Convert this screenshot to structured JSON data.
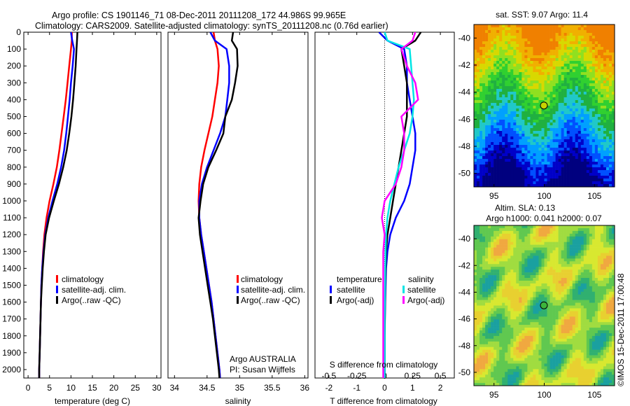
{
  "header": {
    "line1": "Argo profile: CS 1901146_71 08-Dec-2011 20111208_172 44.986S 99.965E",
    "line2": "Climatology: CARS2009. Satellite-adjusted climatology: synTS_20111208.nc (0.76d earlier)"
  },
  "side_label": "©IMOS 15-Dec-2011 17:00:48",
  "colors": {
    "climatology": "#ff0000",
    "satellite": "#0000ff",
    "argo": "#000000",
    "sal_satellite": "#00e5e5",
    "sal_argo": "#ff00ff"
  },
  "chart_data": [
    {
      "type": "line",
      "panel": "temperature",
      "xlabel": "temperature (deg C)",
      "ylabel": "",
      "xlim": [
        -1,
        31
      ],
      "ylim": [
        2050,
        0
      ],
      "x_ticks": [
        0,
        5,
        10,
        15,
        20,
        25,
        30
      ],
      "y_ticks": [
        0,
        100,
        200,
        300,
        400,
        500,
        600,
        700,
        800,
        900,
        1000,
        1100,
        1200,
        1300,
        1400,
        1500,
        1600,
        1700,
        1800,
        1900,
        2000
      ],
      "legend": [
        "climatology",
        "satellite-adj. clim.",
        "Argo(..raw -QC)"
      ],
      "series": [
        {
          "name": "climatology",
          "color": "#ff0000",
          "points": [
            [
              10.2,
              0
            ],
            [
              10.2,
              50
            ],
            [
              10.0,
              100
            ],
            [
              9.6,
              200
            ],
            [
              9.2,
              300
            ],
            [
              8.8,
              400
            ],
            [
              8.3,
              500
            ],
            [
              7.8,
              600
            ],
            [
              7.3,
              700
            ],
            [
              6.7,
              800
            ],
            [
              5.9,
              900
            ],
            [
              5.0,
              1000
            ],
            [
              4.3,
              1100
            ],
            [
              3.8,
              1200
            ],
            [
              3.5,
              1300
            ],
            [
              3.3,
              1400
            ],
            [
              3.1,
              1500
            ],
            [
              3.0,
              1600
            ],
            [
              2.9,
              1700
            ],
            [
              2.8,
              1800
            ],
            [
              2.7,
              1900
            ],
            [
              2.6,
              2000
            ],
            [
              2.6,
              2050
            ]
          ]
        },
        {
          "name": "satellite-adj. clim.",
          "color": "#0000ff",
          "points": [
            [
              10.0,
              0
            ],
            [
              10.3,
              50
            ],
            [
              10.7,
              100
            ],
            [
              10.4,
              200
            ],
            [
              10.0,
              300
            ],
            [
              9.7,
              400
            ],
            [
              9.3,
              500
            ],
            [
              8.9,
              600
            ],
            [
              8.4,
              700
            ],
            [
              7.7,
              800
            ],
            [
              6.8,
              900
            ],
            [
              5.7,
              1000
            ],
            [
              4.7,
              1100
            ],
            [
              4.0,
              1200
            ],
            [
              3.6,
              1300
            ],
            [
              3.3,
              1400
            ],
            [
              3.1,
              1500
            ],
            [
              3.0,
              1600
            ],
            [
              2.9,
              1700
            ],
            [
              2.8,
              1800
            ],
            [
              2.7,
              1900
            ],
            [
              2.6,
              2000
            ],
            [
              2.6,
              2050
            ]
          ]
        },
        {
          "name": "Argo(..raw -QC)",
          "color": "#000000",
          "points": [
            [
              11.5,
              0
            ],
            [
              11.4,
              50
            ],
            [
              11.3,
              100
            ],
            [
              11.1,
              200
            ],
            [
              10.8,
              300
            ],
            [
              10.5,
              400
            ],
            [
              10.1,
              500
            ],
            [
              9.6,
              600
            ],
            [
              9.0,
              700
            ],
            [
              8.2,
              800
            ],
            [
              7.2,
              900
            ],
            [
              6.0,
              1000
            ],
            [
              4.9,
              1100
            ],
            [
              4.1,
              1200
            ],
            [
              3.7,
              1300
            ],
            [
              3.4,
              1400
            ],
            [
              3.2,
              1500
            ],
            [
              3.0,
              1600
            ],
            [
              2.9,
              1700
            ],
            [
              2.8,
              1800
            ],
            [
              2.7,
              1900
            ],
            [
              2.6,
              2000
            ],
            [
              2.6,
              2050
            ]
          ]
        }
      ]
    },
    {
      "type": "line",
      "panel": "salinity",
      "xlabel": "salinity",
      "xlim": [
        33.9,
        36.05
      ],
      "ylim": [
        2050,
        0
      ],
      "x_ticks": [
        34,
        34.5,
        35,
        35.5,
        36
      ],
      "legend": [
        "climatology",
        "satellite-adj. clim.",
        "Argo(..raw -QC)"
      ],
      "annotation": [
        "Argo AUSTRALIA",
        "PI: Susan Wijffels"
      ],
      "series": [
        {
          "name": "climatology",
          "color": "#ff0000",
          "points": [
            [
              34.6,
              0
            ],
            [
              34.62,
              50
            ],
            [
              34.66,
              100
            ],
            [
              34.68,
              200
            ],
            [
              34.66,
              300
            ],
            [
              34.62,
              400
            ],
            [
              34.58,
              500
            ],
            [
              34.52,
              600
            ],
            [
              34.46,
              700
            ],
            [
              34.41,
              800
            ],
            [
              34.38,
              900
            ],
            [
              34.37,
              1000
            ],
            [
              34.38,
              1100
            ],
            [
              34.41,
              1200
            ],
            [
              34.45,
              1300
            ],
            [
              34.49,
              1400
            ],
            [
              34.53,
              1500
            ],
            [
              34.57,
              1600
            ],
            [
              34.6,
              1700
            ],
            [
              34.63,
              1800
            ],
            [
              34.66,
              1900
            ],
            [
              34.69,
              2000
            ],
            [
              34.7,
              2050
            ]
          ]
        },
        {
          "name": "satellite-adj. clim.",
          "color": "#0000ff",
          "points": [
            [
              34.55,
              0
            ],
            [
              34.62,
              50
            ],
            [
              34.8,
              100
            ],
            [
              34.84,
              200
            ],
            [
              34.84,
              300
            ],
            [
              34.81,
              400
            ],
            [
              34.78,
              500
            ],
            [
              34.7,
              600
            ],
            [
              34.6,
              700
            ],
            [
              34.5,
              800
            ],
            [
              34.42,
              900
            ],
            [
              34.38,
              1000
            ],
            [
              34.38,
              1100
            ],
            [
              34.41,
              1200
            ],
            [
              34.45,
              1300
            ],
            [
              34.49,
              1400
            ],
            [
              34.53,
              1500
            ],
            [
              34.57,
              1600
            ],
            [
              34.6,
              1700
            ],
            [
              34.63,
              1800
            ],
            [
              34.66,
              1900
            ],
            [
              34.69,
              2000
            ],
            [
              34.7,
              2050
            ]
          ]
        },
        {
          "name": "Argo(..raw -QC)",
          "color": "#000000",
          "points": [
            [
              34.9,
              0
            ],
            [
              34.88,
              50
            ],
            [
              34.96,
              100
            ],
            [
              34.97,
              200
            ],
            [
              34.93,
              300
            ],
            [
              34.88,
              400
            ],
            [
              34.78,
              500
            ],
            [
              34.75,
              600
            ],
            [
              34.64,
              700
            ],
            [
              34.52,
              800
            ],
            [
              34.44,
              900
            ],
            [
              34.4,
              1000
            ],
            [
              34.37,
              1100
            ],
            [
              34.39,
              1200
            ],
            [
              34.43,
              1300
            ],
            [
              34.47,
              1400
            ],
            [
              34.51,
              1500
            ],
            [
              34.55,
              1600
            ],
            [
              34.59,
              1700
            ],
            [
              34.62,
              1800
            ],
            [
              34.65,
              1900
            ],
            [
              34.68,
              2000
            ],
            [
              34.69,
              2050
            ]
          ]
        }
      ]
    },
    {
      "type": "line",
      "panel": "difference",
      "xlabel": "T difference from climatology",
      "xlabel_top": "S difference from climatology",
      "xlim": [
        -2.5,
        2.5
      ],
      "ylim": [
        2050,
        0
      ],
      "x_ticks": [
        -2,
        -1,
        0,
        1,
        2
      ],
      "x_ticks_sal": [
        "-0.5",
        "-0.25",
        "0",
        "0.25",
        "0.5"
      ],
      "x_ticks_sal_values": [
        -2,
        -1,
        0,
        1,
        2
      ],
      "legend_temperature_title": "temperature",
      "legend_salinity_title": "salinity",
      "legend_temperature": [
        "satellite",
        "Argo(-adj)"
      ],
      "legend_salinity": [
        "satellite",
        "Argo(-adj)"
      ],
      "series": [
        {
          "name": "satellite",
          "group": "temperature",
          "color": "#0000ff",
          "points": [
            [
              -0.2,
              0
            ],
            [
              0.1,
              50
            ],
            [
              0.7,
              100
            ],
            [
              0.8,
              200
            ],
            [
              0.8,
              300
            ],
            [
              0.9,
              400
            ],
            [
              1.0,
              500
            ],
            [
              1.1,
              600
            ],
            [
              1.1,
              700
            ],
            [
              1.0,
              800
            ],
            [
              0.9,
              900
            ],
            [
              0.7,
              1000
            ],
            [
              0.4,
              1100
            ],
            [
              0.2,
              1200
            ],
            [
              0.1,
              1300
            ],
            [
              0.05,
              1400
            ],
            [
              0.02,
              1600
            ],
            [
              0.0,
              1800
            ],
            [
              0.0,
              2050
            ]
          ]
        },
        {
          "name": "Argo(-adj)",
          "group": "temperature",
          "color": "#000000",
          "points": [
            [
              1.3,
              0
            ],
            [
              1.1,
              50
            ],
            [
              0.6,
              100
            ],
            [
              0.7,
              200
            ],
            [
              0.8,
              300
            ],
            [
              0.8,
              400
            ],
            [
              0.8,
              500
            ],
            [
              0.7,
              600
            ],
            [
              0.6,
              700
            ],
            [
              0.5,
              800
            ],
            [
              0.4,
              900
            ],
            [
              0.3,
              1000
            ],
            [
              0.2,
              1100
            ],
            [
              0.1,
              1200
            ],
            [
              0.05,
              1300
            ],
            [
              0.02,
              1500
            ],
            [
              0.0,
              1800
            ],
            [
              0.0,
              2050
            ]
          ]
        },
        {
          "name": "satellite",
          "group": "salinity",
          "color": "#00e5e5",
          "points": [
            [
              0.0,
              0
            ],
            [
              0.1,
              50
            ],
            [
              0.9,
              100
            ],
            [
              0.95,
              200
            ],
            [
              1.0,
              300
            ],
            [
              1.05,
              400
            ],
            [
              1.0,
              500
            ],
            [
              0.9,
              600
            ],
            [
              0.7,
              700
            ],
            [
              0.5,
              800
            ],
            [
              0.35,
              900
            ],
            [
              0.2,
              1000
            ],
            [
              0.1,
              1100
            ],
            [
              0.05,
              1200
            ],
            [
              0.02,
              1400
            ],
            [
              0.0,
              1700
            ],
            [
              0.0,
              2050
            ]
          ]
        },
        {
          "name": "Argo(-adj)",
          "group": "salinity",
          "color": "#ff00ff",
          "points": [
            [
              1.1,
              0
            ],
            [
              1.0,
              50
            ],
            [
              0.6,
              100
            ],
            [
              0.8,
              200
            ],
            [
              1.1,
              300
            ],
            [
              1.2,
              400
            ],
            [
              0.6,
              500
            ],
            [
              0.7,
              600
            ],
            [
              0.7,
              700
            ],
            [
              0.6,
              800
            ],
            [
              0.4,
              900
            ],
            [
              0.0,
              1000
            ],
            [
              -0.1,
              1100
            ],
            [
              0.0,
              1200
            ],
            [
              -0.05,
              1300
            ],
            [
              -0.05,
              1500
            ],
            [
              -0.05,
              1800
            ],
            [
              -0.05,
              2000
            ],
            [
              -0.05,
              2050
            ]
          ]
        }
      ]
    },
    {
      "type": "heatmap",
      "panel": "sst-map",
      "title": "sat. SST: 9.07 Argo: 11.4",
      "xlim": [
        93,
        107
      ],
      "ylim": [
        -51,
        -39
      ],
      "x_ticks": [
        95,
        100,
        105
      ],
      "y_ticks": [
        -40,
        -42,
        -44,
        -46,
        -48,
        -50
      ],
      "marker": {
        "lon": 99.965,
        "lat": -44.986
      }
    },
    {
      "type": "heatmap",
      "panel": "sla-map",
      "title_line1": "Altim. SLA: 0.13",
      "title_line2": "Argo h1000: 0.041 h2000: 0.07",
      "xlim": [
        93,
        107
      ],
      "ylim": [
        -51,
        -39
      ],
      "x_ticks": [
        95,
        100,
        105
      ],
      "y_ticks": [
        -40,
        -42,
        -44,
        -46,
        -48,
        -50
      ],
      "marker": {
        "lon": 99.965,
        "lat": -44.986
      }
    }
  ]
}
